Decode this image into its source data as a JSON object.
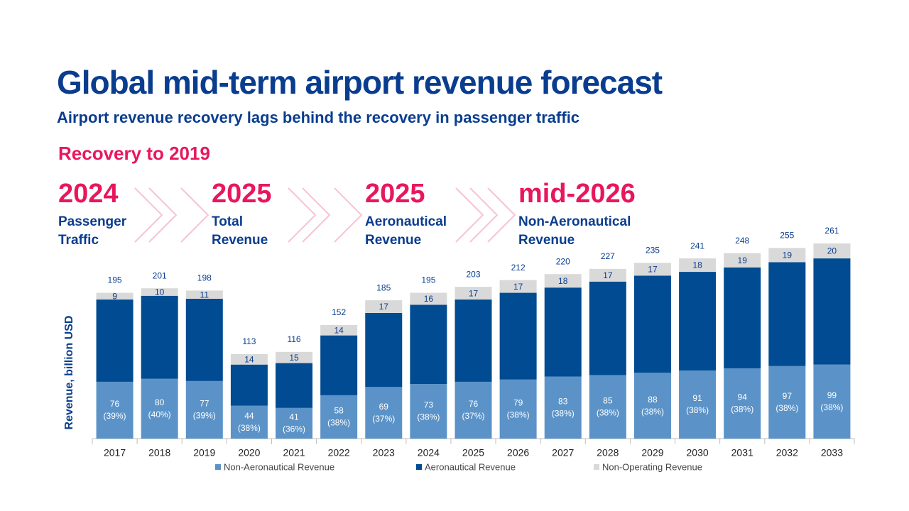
{
  "chart_data": {
    "type": "stacked_bar",
    "title": "Global mid-term airport revenue forecast",
    "subtitle": "Airport revenue recovery lags behind the recovery in passenger traffic",
    "y_label": "Revenue, billion USD",
    "categories": [
      "2017",
      "2018",
      "2019",
      "2020",
      "2021",
      "2022",
      "2023",
      "2024",
      "2025",
      "2026",
      "2027",
      "2028",
      "2029",
      "2030",
      "2031",
      "2032",
      "2033"
    ],
    "series": [
      {
        "name": "Non-Aeronautical Revenue",
        "color": "#5b93c8",
        "values": [
          76,
          80,
          77,
          44,
          41,
          58,
          69,
          73,
          76,
          79,
          83,
          85,
          88,
          91,
          94,
          97,
          99
        ],
        "share_labels": [
          "(39%)",
          "(40%)",
          "(39%)",
          "(38%)",
          "(36%)",
          "(38%)",
          "(37%)",
          "(38%)",
          "(37%)",
          "(38%)",
          "(38%)",
          "(38%)",
          "(38%)",
          "(38%)",
          "(38%)",
          "(38%)",
          "(38%)"
        ]
      },
      {
        "name": "Aeronautical Revenue",
        "color": "#004b91",
        "values": [
          110,
          111,
          110,
          55,
          60,
          80,
          99,
          106,
          110,
          116,
          119,
          125,
          130,
          132,
          135,
          139,
          142
        ]
      },
      {
        "name": "Non-Operating Revenue",
        "color": "#d9d9d9",
        "values": [
          9,
          10,
          11,
          14,
          15,
          14,
          17,
          16,
          17,
          17,
          18,
          17,
          17,
          18,
          19,
          19,
          20
        ]
      }
    ],
    "totals": [
      195,
      201,
      198,
      113,
      116,
      152,
      185,
      195,
      203,
      212,
      220,
      227,
      235,
      241,
      248,
      255,
      261
    ],
    "ylim": [
      0,
      280
    ]
  },
  "milestones": {
    "heading": "Recovery to 2019",
    "items": [
      {
        "year": "2024",
        "label_lines": [
          "Passenger",
          "Traffic"
        ]
      },
      {
        "year": "2025",
        "label_lines": [
          "Total",
          "Revenue"
        ]
      },
      {
        "year": "2025",
        "label_lines": [
          "Aeronautical",
          "Revenue"
        ]
      },
      {
        "year": "mid-2026",
        "label_lines": [
          "Non-Aeronautical",
          "Revenue"
        ]
      }
    ]
  }
}
